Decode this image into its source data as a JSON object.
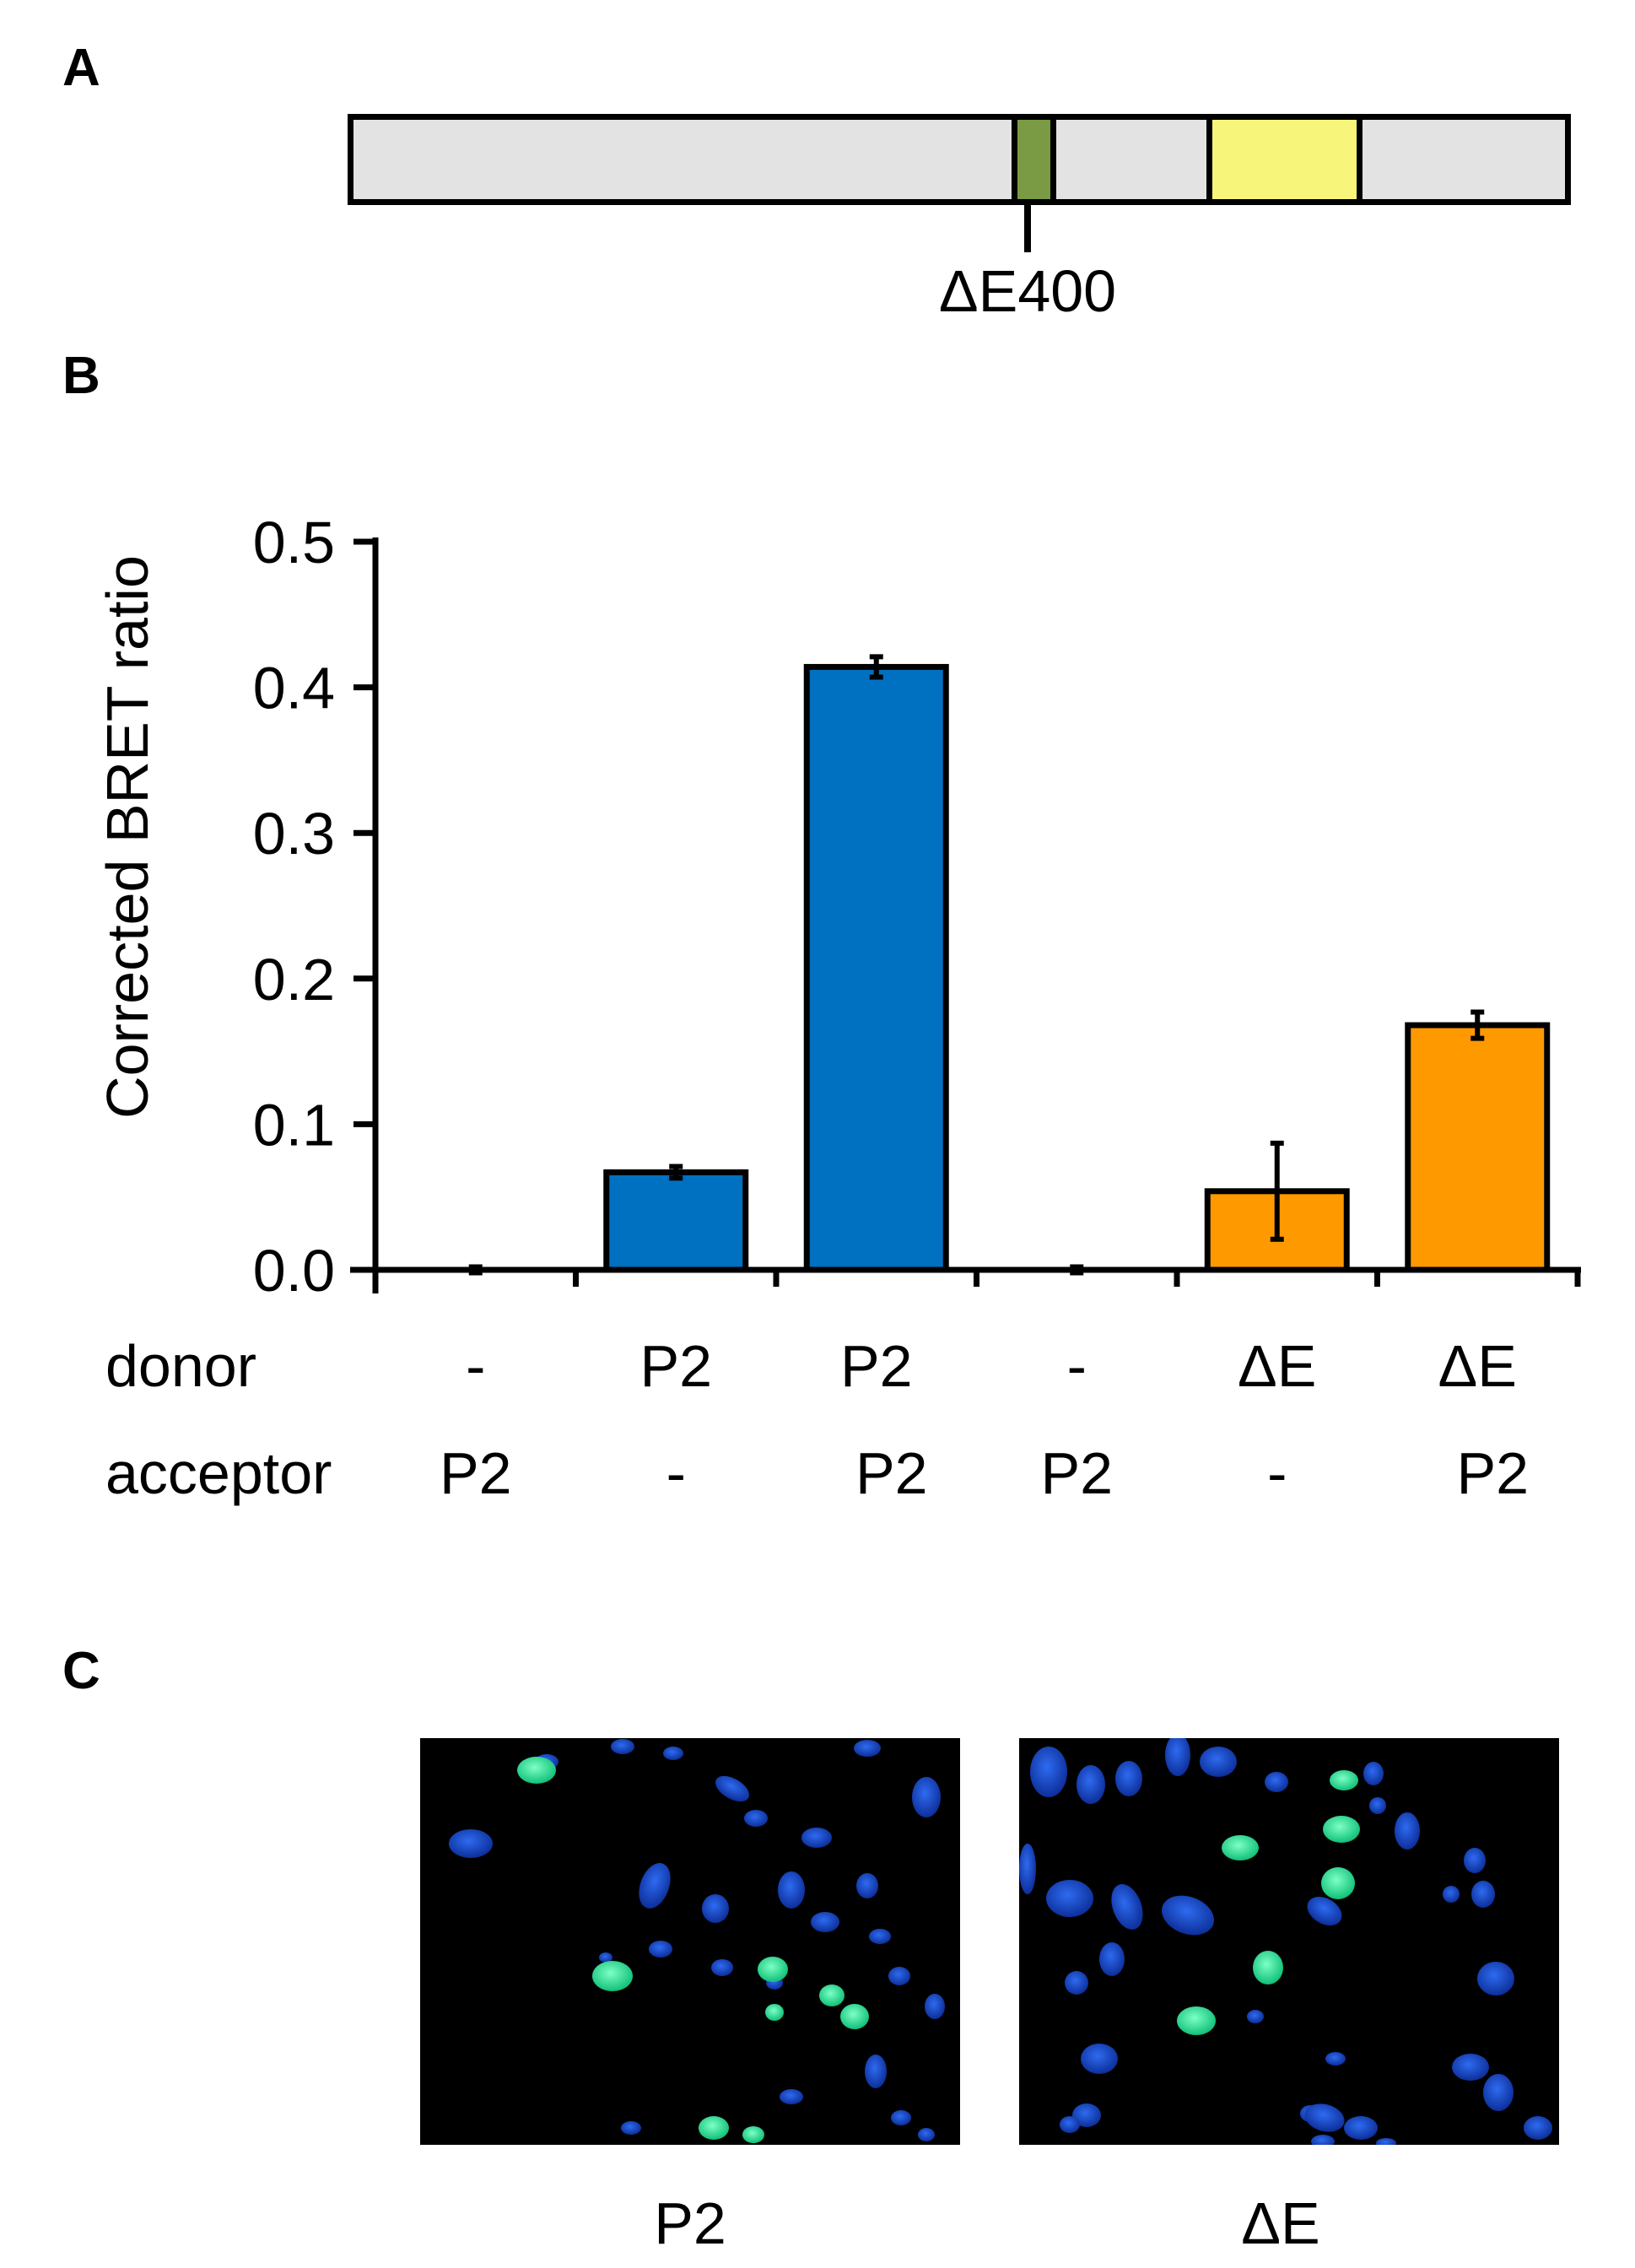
{
  "panels": {
    "a": "A",
    "b": "B",
    "c": "C"
  },
  "domain_diagram": {
    "mutation_label": "ΔE400",
    "colors": {
      "body": "#e3e3e3",
      "domain1": "#7a9a43",
      "domain2": "#f8f67a"
    }
  },
  "chart_data": {
    "type": "bar",
    "ylabel": "Corrected BRET ratio",
    "ylim": [
      0,
      0.5
    ],
    "yticks": [
      "0.0",
      "0.1",
      "0.2",
      "0.3",
      "0.4",
      "0.5"
    ],
    "bars": [
      {
        "value": 0.0,
        "error": 0.002,
        "color": "#0070c0"
      },
      {
        "value": 0.067,
        "error": 0.004,
        "color": "#0070c0"
      },
      {
        "value": 0.414,
        "error": 0.007,
        "color": "#0070c0"
      },
      {
        "value": 0.0,
        "error": 0.002,
        "color": "#ff9900"
      },
      {
        "value": 0.054,
        "error": 0.033,
        "color": "#ff9900"
      },
      {
        "value": 0.168,
        "error": 0.009,
        "color": "#ff9900"
      }
    ],
    "rows": [
      {
        "label": "donor",
        "values": [
          "-",
          "P2",
          "P2",
          "-",
          "ΔE",
          "ΔE"
        ]
      },
      {
        "label": "acceptor",
        "values": [
          "P2",
          "-",
          "P2",
          "P2",
          "-",
          "P2"
        ]
      }
    ],
    "grid": false
  },
  "micrographs": {
    "captions": [
      "P2",
      "ΔE"
    ],
    "colors": {
      "nucleus": "#1a4fd0",
      "positive": "#19e08a"
    }
  }
}
